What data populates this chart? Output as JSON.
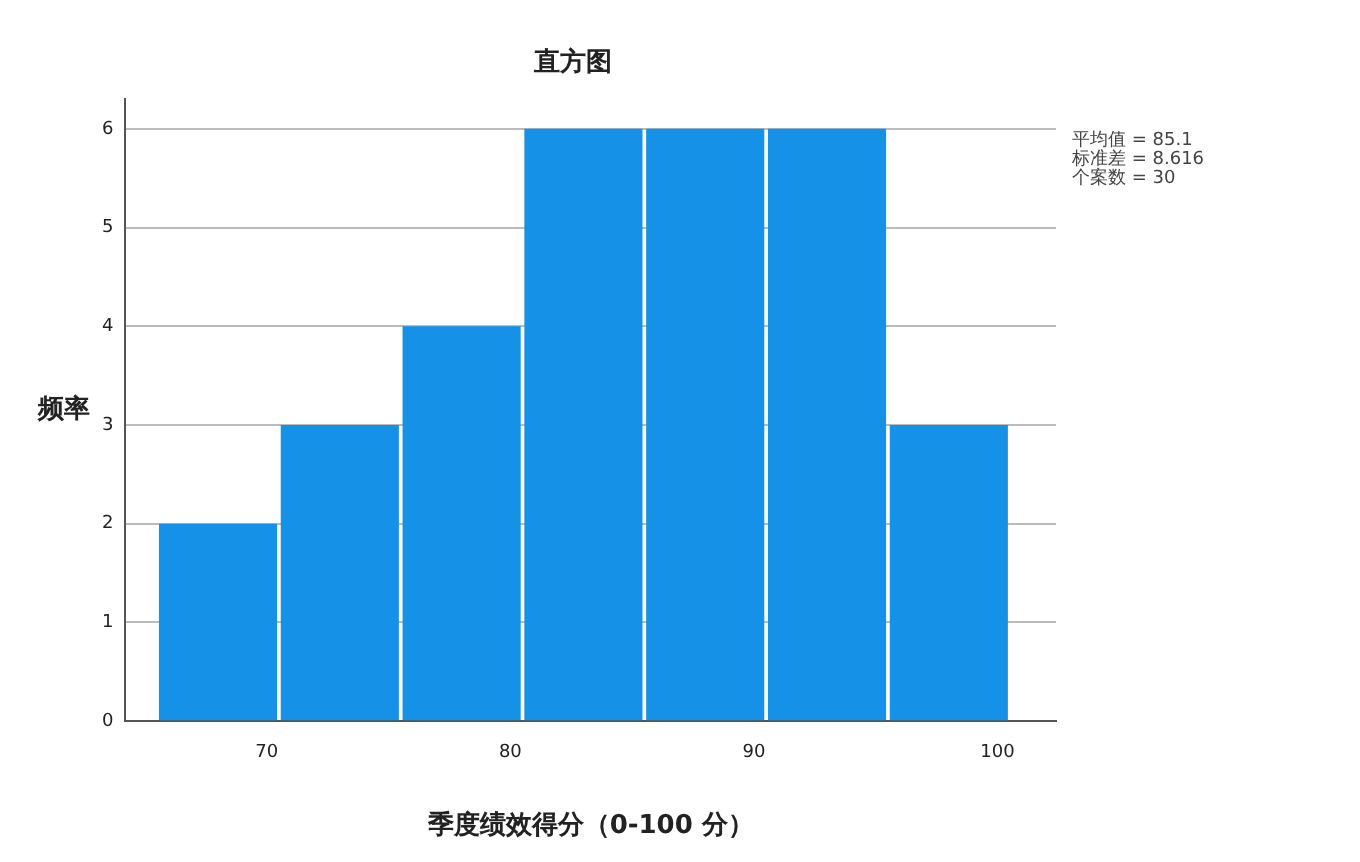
{
  "chart_data": {
    "type": "histogram",
    "title": "直方图",
    "xlabel": "季度绩效得分（0-100 分）",
    "ylabel": "频率",
    "bins": [
      65.5,
      70.5,
      75.5,
      80.5,
      85.5,
      90.5,
      95.5,
      100.5
    ],
    "values": [
      2,
      3,
      4,
      6,
      6,
      6,
      3
    ],
    "color": "#1591e8",
    "xlim": [
      64.2,
      102.4
    ],
    "xticks": [
      70,
      80,
      90,
      100
    ],
    "ylim": [
      0,
      6.3
    ],
    "yticks": [
      0,
      1,
      2,
      3,
      4,
      5,
      6
    ],
    "grid": "y",
    "legend": false,
    "annotations": [
      "平均值 = 85.1",
      "标准差 = 8.616",
      "个案数 = 30"
    ]
  }
}
